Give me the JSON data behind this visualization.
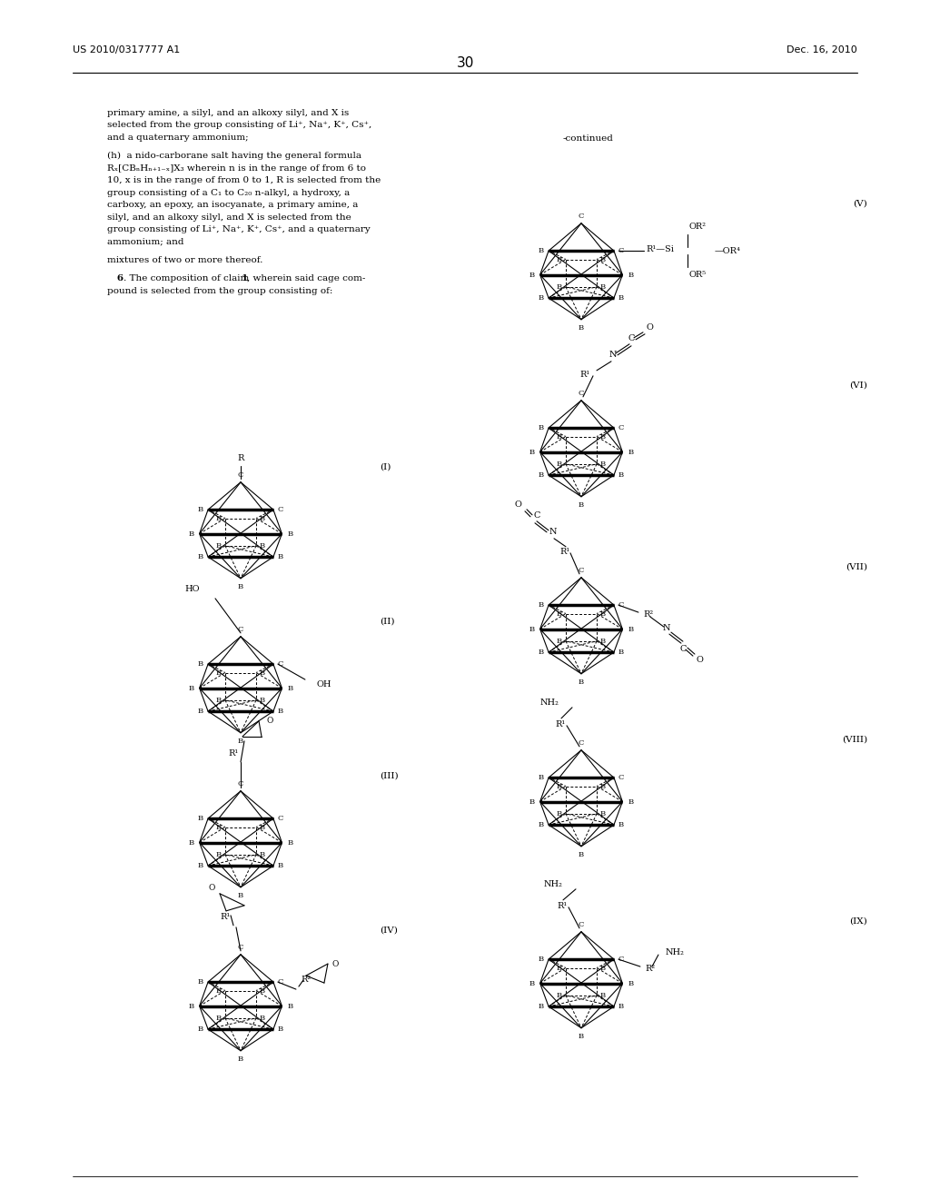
{
  "background_color": "#ffffff",
  "header_left": "US 2010/0317777 A1",
  "header_right": "Dec. 16, 2010",
  "page_number": "30"
}
